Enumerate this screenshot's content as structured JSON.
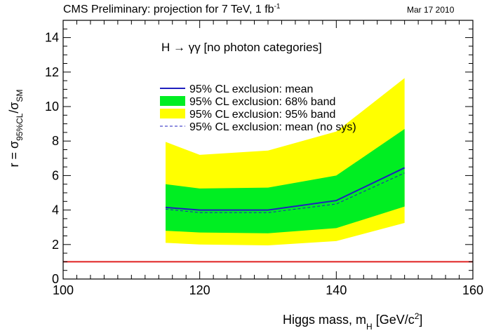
{
  "header": {
    "title_main": "CMS Preliminary: projection for 7 TeV, 1 fb",
    "title_sup": "-1",
    "date": "Mar 17 2010"
  },
  "annotation": "H → γγ   [no photon categories]",
  "axes": {
    "x_label_main": "Higgs mass, m",
    "x_label_sub": "H",
    "x_label_units_pre": " [GeV/c",
    "x_label_units_sup": "2",
    "x_label_units_post": "]",
    "y_label_prefix": "r = σ",
    "y_label_sub1": "95%CL",
    "y_label_mid": "/σ",
    "y_label_sub2": "SM"
  },
  "colors": {
    "mean": "#1f1fbf",
    "band68": "#00ee22",
    "band95": "#ffff00",
    "nosys": "#1f1fbf",
    "reference": "#e02020",
    "frame": "#000000"
  },
  "chart_data": {
    "type": "line",
    "xlim": [
      100,
      160
    ],
    "ylim": [
      0,
      15
    ],
    "x_ticks": [
      100,
      120,
      140,
      160
    ],
    "y_ticks": [
      0,
      2,
      4,
      6,
      8,
      10,
      12,
      14
    ],
    "x": [
      115,
      120,
      130,
      140,
      150
    ],
    "series": [
      {
        "name": "95% CL exclusion: mean",
        "style": "line",
        "values": [
          4.15,
          4.0,
          4.0,
          4.55,
          6.45
        ]
      },
      {
        "name": "95% CL exclusion: 68% band",
        "style": "band",
        "lower": [
          2.8,
          2.7,
          2.65,
          2.95,
          4.2
        ],
        "upper": [
          5.5,
          5.25,
          5.3,
          6.0,
          8.7
        ]
      },
      {
        "name": "95% CL exclusion: 95% band",
        "style": "band",
        "lower": [
          2.1,
          2.0,
          1.95,
          2.2,
          3.25
        ],
        "upper": [
          7.95,
          7.2,
          7.45,
          8.55,
          11.65
        ]
      },
      {
        "name": "95% CL exclusion: mean (no sys)",
        "style": "dashed",
        "values": [
          4.05,
          3.85,
          3.85,
          4.35,
          6.15
        ]
      }
    ],
    "reference_line": 1,
    "legend_position": "top-center"
  }
}
